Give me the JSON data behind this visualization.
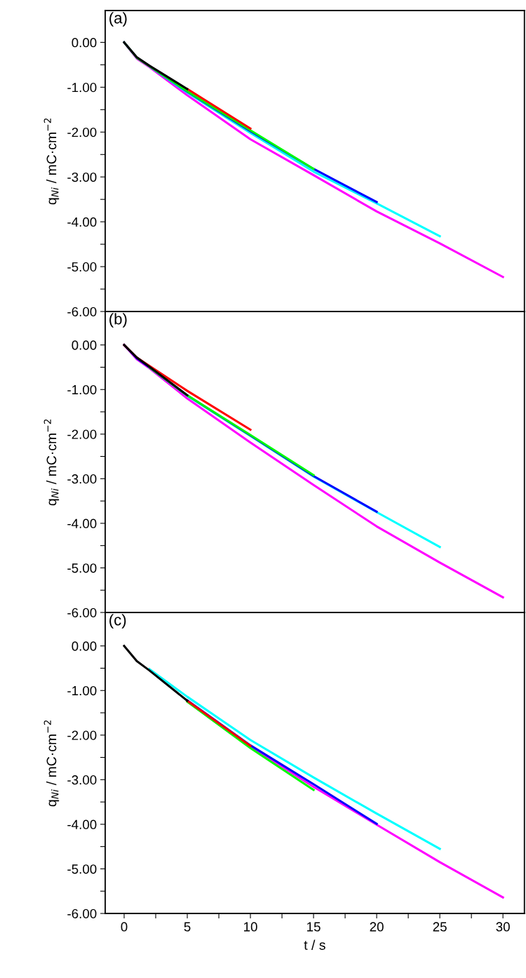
{
  "chart_data": [
    {
      "type": "line",
      "annotations": [
        "(a)"
      ],
      "ylabel": "q$_{Ni}$ / mC·cm$^{−2}$",
      "tick_labels": "y",
      "grid": false,
      "legend": false,
      "xlim": [
        -1.5,
        31.7
      ],
      "ylim": [
        -6.0,
        0.71
      ],
      "xticks": [
        0,
        5,
        10,
        15,
        20,
        25,
        30
      ],
      "yticks": [
        {
          "value": 0,
          "label": "0.00"
        },
        {
          "value": -0.5,
          "label": null
        },
        {
          "value": -1,
          "label": "-1.00"
        },
        {
          "value": -1.5,
          "label": null
        },
        {
          "value": -2,
          "label": "-2.00"
        },
        {
          "value": -2.5,
          "label": null
        },
        {
          "value": -3,
          "label": "-3.00"
        },
        {
          "value": -3.5,
          "label": null
        },
        {
          "value": -4,
          "label": "-4.00"
        },
        {
          "value": -4.5,
          "label": null
        },
        {
          "value": -5,
          "label": "-5.00"
        },
        {
          "value": -5.5,
          "label": null
        },
        {
          "value": -6,
          "label": "-6.00"
        }
      ],
      "series": [
        {
          "color": "#ff00ff",
          "x": [
            0,
            1,
            2,
            5,
            10,
            15,
            20,
            25,
            30
          ],
          "values": [
            0,
            -0.36,
            -0.55,
            -1.18,
            -2.16,
            -2.96,
            -3.77,
            -4.48,
            -5.23
          ]
        },
        {
          "color": "#00ffff",
          "x": [
            2,
            5,
            10,
            15,
            20,
            25
          ],
          "values": [
            -0.53,
            -1.12,
            -2.02,
            -2.88,
            -3.59,
            -4.32
          ]
        },
        {
          "color": "#0000ff",
          "x": [
            0,
            1,
            2,
            5,
            10,
            15,
            20
          ],
          "values": [
            0,
            -0.34,
            -0.53,
            -1.1,
            -1.98,
            -2.82,
            -3.56
          ]
        },
        {
          "color": "#00ff00",
          "x": [
            0,
            1,
            2,
            5,
            10,
            15
          ],
          "values": [
            0,
            -0.34,
            -0.53,
            -1.09,
            -1.96,
            -2.82
          ]
        },
        {
          "color": "#ff0000",
          "x": [
            5,
            10
          ],
          "values": [
            -1.04,
            -1.92
          ]
        },
        {
          "color": "#000000",
          "x": [
            0,
            1,
            2,
            5
          ],
          "values": [
            0,
            -0.33,
            -0.52,
            -1.04
          ]
        }
      ]
    },
    {
      "type": "line",
      "annotations": [
        "(b)"
      ],
      "ylabel": "q$_{Ni}$ / mC·cm$^{−2}$",
      "tick_labels": "y",
      "grid": false,
      "legend": false,
      "xlim": [
        -1.5,
        31.7
      ],
      "ylim": [
        -6.0,
        0.75
      ],
      "xticks": [
        0,
        5,
        10,
        15,
        20,
        25,
        30
      ],
      "yticks": [
        {
          "value": 0,
          "label": "0.00"
        },
        {
          "value": -0.5,
          "label": null
        },
        {
          "value": -1,
          "label": "-1.00"
        },
        {
          "value": -1.5,
          "label": null
        },
        {
          "value": -2,
          "label": "-2.00"
        },
        {
          "value": -2.5,
          "label": null
        },
        {
          "value": -3,
          "label": "-3.00"
        },
        {
          "value": -3.5,
          "label": null
        },
        {
          "value": -4,
          "label": "-4.00"
        },
        {
          "value": -4.5,
          "label": null
        },
        {
          "value": -5,
          "label": "-5.00"
        },
        {
          "value": -5.5,
          "label": null
        },
        {
          "value": -6,
          "label": "-6.00"
        }
      ],
      "series": [
        {
          "color": "#ff00ff",
          "x": [
            0,
            1,
            2,
            5,
            10,
            15,
            20,
            25,
            30
          ],
          "values": [
            0,
            -0.32,
            -0.52,
            -1.2,
            -2.19,
            -3.14,
            -4.07,
            -4.88,
            -5.66
          ]
        },
        {
          "color": "#00ffff",
          "x": [
            2,
            5,
            10,
            15,
            20,
            25
          ],
          "values": [
            -0.5,
            -1.14,
            -2.04,
            -2.95,
            -3.75,
            -4.53
          ]
        },
        {
          "color": "#0000ff",
          "x": [
            0,
            1,
            2,
            5,
            10,
            15,
            20
          ],
          "values": [
            0,
            -0.3,
            -0.5,
            -1.13,
            -2.03,
            -2.94,
            -3.74
          ]
        },
        {
          "color": "#00ff00",
          "x": [
            2,
            5,
            10,
            15
          ],
          "values": [
            -0.5,
            -1.13,
            -2.02,
            -2.92
          ]
        },
        {
          "color": "#ff0000",
          "x": [
            0,
            1,
            2,
            5,
            10
          ],
          "values": [
            0,
            -0.28,
            -0.47,
            -1.03,
            -1.9
          ]
        },
        {
          "color": "#000000",
          "x": [
            0,
            1,
            2,
            5
          ],
          "values": [
            0,
            -0.28,
            -0.49,
            -1.13
          ]
        }
      ]
    },
    {
      "type": "line",
      "annotations": [
        "(c)"
      ],
      "ylabel": "q$_{Ni}$ / mC·cm$^{−2}$",
      "xlabel": "t / s",
      "grid": false,
      "legend": false,
      "xlim": [
        -1.5,
        31.7
      ],
      "ylim": [
        -6.0,
        0.75
      ],
      "xticks": [
        0,
        {
          "value": 2.5,
          "label": null
        },
        5,
        {
          "value": 7.5,
          "label": null
        },
        10,
        {
          "value": 12.5,
          "label": null
        },
        15,
        {
          "value": 17.5,
          "label": null
        },
        20,
        {
          "value": 22.5,
          "label": null
        },
        25,
        {
          "value": 27.5,
          "label": null
        },
        30
      ],
      "yticks": [
        {
          "value": 0,
          "label": "0.00"
        },
        {
          "value": -0.5,
          "label": null
        },
        {
          "value": -1,
          "label": "-1.00"
        },
        {
          "value": -1.5,
          "label": null
        },
        {
          "value": -2,
          "label": "-2.00"
        },
        {
          "value": -2.5,
          "label": null
        },
        {
          "value": -3,
          "label": "-3.00"
        },
        {
          "value": -3.5,
          "label": null
        },
        {
          "value": -4,
          "label": "-4.00"
        },
        {
          "value": -4.5,
          "label": null
        },
        {
          "value": -5,
          "label": "-5.00"
        },
        {
          "value": -5.5,
          "label": null
        },
        {
          "value": -6,
          "label": "-6.00"
        }
      ],
      "series": [
        {
          "color": "#ff00ff",
          "x": [
            5,
            10,
            15,
            20,
            25,
            30
          ],
          "values": [
            -1.23,
            -2.25,
            -3.16,
            -4.01,
            -4.85,
            -5.64
          ]
        },
        {
          "color": "#00ffff",
          "x": [
            2,
            5,
            10,
            15,
            20,
            25
          ],
          "values": [
            -0.52,
            -1.14,
            -2.11,
            -2.95,
            -3.76,
            -4.55
          ]
        },
        {
          "color": "#0000ff",
          "x": [
            5,
            10,
            15,
            20
          ],
          "values": [
            -1.22,
            -2.23,
            -3.1,
            -3.99
          ]
        },
        {
          "color": "#00ff00",
          "x": [
            5,
            10,
            15
          ],
          "values": [
            -1.25,
            -2.29,
            -3.23
          ]
        },
        {
          "color": "#ff0000",
          "x": [
            5,
            10
          ],
          "values": [
            -1.23,
            -2.24
          ]
        },
        {
          "color": "#000000",
          "x": [
            0,
            1,
            2,
            5
          ],
          "values": [
            0,
            -0.34,
            -0.55,
            -1.23
          ]
        }
      ]
    }
  ]
}
